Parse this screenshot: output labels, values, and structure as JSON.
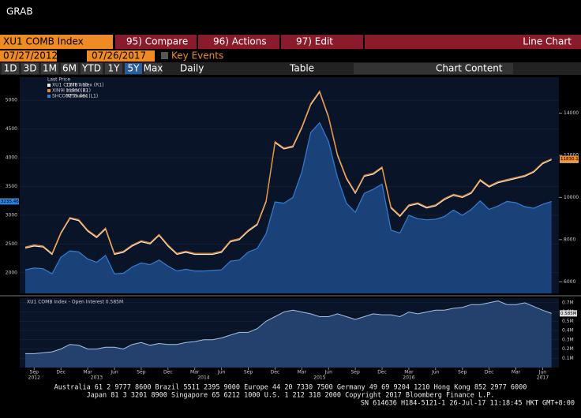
{
  "header": {
    "title": "GRAB"
  },
  "toolbar": {
    "security": "XU1 COMB Index",
    "compare": "95) Compare",
    "actions": "96) Actions",
    "edit": "97) Edit",
    "chart_type": "Line Chart",
    "start_date": "07/27/2012",
    "end_date": "07/26/2017",
    "key_events": "Key Events",
    "periods": [
      "1D",
      "3D",
      "1M",
      "6M",
      "YTD",
      "1Y",
      "5Y",
      "Max"
    ],
    "frequency": "Daily",
    "table": "Table",
    "chart_content": "Chart Content"
  },
  "chart_data": [
    {
      "type": "line",
      "legend_title": "Last Price",
      "x": [
        "2012-08",
        "2012-09",
        "2012-10",
        "2012-11",
        "2012-12",
        "2013-01",
        "2013-02",
        "2013-03",
        "2013-04",
        "2013-05",
        "2013-06",
        "2013-07",
        "2013-08",
        "2013-09",
        "2013-10",
        "2013-11",
        "2013-12",
        "2014-01",
        "2014-02",
        "2014-03",
        "2014-04",
        "2014-05",
        "2014-06",
        "2014-07",
        "2014-08",
        "2014-09",
        "2014-10",
        "2014-11",
        "2014-12",
        "2015-01",
        "2015-02",
        "2015-03",
        "2015-04",
        "2015-05",
        "2015-06",
        "2015-07",
        "2015-08",
        "2015-09",
        "2015-10",
        "2015-11",
        "2015-12",
        "2016-01",
        "2016-02",
        "2016-03",
        "2016-04",
        "2016-05",
        "2016-06",
        "2016-07",
        "2016-08",
        "2016-09",
        "2016-10",
        "2016-11",
        "2016-12",
        "2017-01",
        "2017-02",
        "2017-03",
        "2017-04",
        "2017-05",
        "2017-06",
        "2017-07"
      ],
      "series": [
        {
          "name": "XU1 COMB Index (R1)",
          "last_label": "11787.50",
          "color": "#f0f0f0",
          "axis": "y2",
          "values": [
            7600,
            7700,
            7650,
            7300,
            8300,
            9000,
            8900,
            8400,
            8100,
            8500,
            7300,
            7400,
            7700,
            7900,
            7800,
            8200,
            7700,
            7300,
            7400,
            7300,
            7300,
            7300,
            7400,
            7900,
            8000,
            8400,
            8700,
            9800,
            12600,
            12300,
            12400,
            13300,
            14400,
            15000,
            13800,
            12000,
            10900,
            10200,
            11000,
            11100,
            11400,
            9500,
            9100,
            9600,
            9700,
            9500,
            9600,
            9900,
            10100,
            10000,
            10200,
            10800,
            10500,
            10700,
            10800,
            10900,
            11000,
            11200,
            11600,
            11790
          ]
        },
        {
          "name": "XIN9I Index (R1)",
          "last_label": "11830.17",
          "color": "#f08a24",
          "axis": "y2",
          "values": [
            7650,
            7750,
            7700,
            7350,
            8350,
            9050,
            8950,
            8450,
            8150,
            8550,
            7350,
            7450,
            7750,
            7950,
            7850,
            8250,
            7750,
            7350,
            7450,
            7350,
            7350,
            7350,
            7450,
            7950,
            8050,
            8450,
            8750,
            9850,
            12650,
            12350,
            12450,
            13350,
            14450,
            15050,
            13850,
            12050,
            10950,
            10250,
            11050,
            11150,
            11450,
            9550,
            9150,
            9650,
            9750,
            9550,
            9650,
            9950,
            10150,
            10050,
            10250,
            10850,
            10550,
            10750,
            10850,
            10950,
            11050,
            11250,
            11650,
            11830
          ]
        },
        {
          "name": "SHCOMP Index (L1)",
          "last_label": "3235.461",
          "color": "#2f7fd8",
          "axis": "y",
          "values": [
            2050,
            2080,
            2070,
            1980,
            2270,
            2380,
            2360,
            2240,
            2180,
            2300,
            1980,
            1990,
            2100,
            2170,
            2140,
            2220,
            2115,
            2030,
            2060,
            2030,
            2030,
            2040,
            2050,
            2200,
            2220,
            2360,
            2420,
            2680,
            3230,
            3210,
            3310,
            3750,
            4440,
            4610,
            4280,
            3660,
            3210,
            3050,
            3380,
            3450,
            3540,
            2740,
            2690,
            3000,
            2940,
            2920,
            2930,
            2980,
            3090,
            3000,
            3100,
            3250,
            3100,
            3160,
            3240,
            3220,
            3150,
            3120,
            3190,
            3240
          ]
        }
      ],
      "ylim": [
        1640,
        5400
      ],
      "yticks": [
        2000,
        2500,
        3000,
        3500,
        4000,
        4500,
        5000
      ],
      "y2lim": [
        5450,
        15700
      ],
      "y2ticks": [
        6000,
        8000,
        10000,
        12000,
        14000
      ]
    },
    {
      "type": "area",
      "name": "XU1 COMB Index - Open Interest 0.585M",
      "last_label": "0.585M",
      "color": "#9fc3e8",
      "values": [
        0.15,
        0.15,
        0.16,
        0.17,
        0.2,
        0.25,
        0.24,
        0.2,
        0.2,
        0.22,
        0.22,
        0.2,
        0.25,
        0.27,
        0.24,
        0.26,
        0.25,
        0.25,
        0.27,
        0.28,
        0.3,
        0.3,
        0.32,
        0.35,
        0.38,
        0.38,
        0.42,
        0.5,
        0.55,
        0.6,
        0.62,
        0.6,
        0.58,
        0.55,
        0.55,
        0.58,
        0.55,
        0.52,
        0.55,
        0.58,
        0.57,
        0.57,
        0.55,
        0.6,
        0.58,
        0.6,
        0.62,
        0.62,
        0.64,
        0.65,
        0.68,
        0.68,
        0.7,
        0.72,
        0.68,
        0.68,
        0.7,
        0.66,
        0.62,
        0.585
      ],
      "ylim": [
        0,
        0.75
      ],
      "yticks": [
        {
          "value": 0.1,
          "label": "0.1M"
        },
        {
          "value": 0.2,
          "label": "0.2M"
        },
        {
          "value": 0.3,
          "label": "0.3M"
        },
        {
          "value": 0.4,
          "label": "0.4M"
        },
        {
          "value": 0.5,
          "label": "0.5M"
        },
        {
          "value": 0.6,
          "label": "0.6M"
        },
        {
          "value": 0.7,
          "label": "0.7M"
        }
      ],
      "xticks": [
        {
          "value": "2012-09",
          "label": "Sep"
        },
        {
          "value": "2012-12",
          "label": "Dec"
        },
        {
          "value": "2013-03",
          "label": "Mar"
        },
        {
          "value": "2013-06",
          "label": "Jun"
        },
        {
          "value": "2013-09",
          "label": "Sep"
        },
        {
          "value": "2013-12",
          "label": "Dec"
        },
        {
          "value": "2014-03",
          "label": "Mar"
        },
        {
          "value": "2014-06",
          "label": "Jun"
        },
        {
          "value": "2014-09",
          "label": "Sep"
        },
        {
          "value": "2014-12",
          "label": "Dec"
        },
        {
          "value": "2015-03",
          "label": "Mar"
        },
        {
          "value": "2015-06",
          "label": "Jun"
        },
        {
          "value": "2015-09",
          "label": "Sep"
        },
        {
          "value": "2015-12",
          "label": "Dec"
        },
        {
          "value": "2016-03",
          "label": "Mar"
        },
        {
          "value": "2016-06",
          "label": "Jun"
        },
        {
          "value": "2016-09",
          "label": "Sep"
        },
        {
          "value": "2016-12",
          "label": "Dec"
        },
        {
          "value": "2017-03",
          "label": "Mar"
        },
        {
          "value": "2017-06",
          "label": "Jun"
        }
      ],
      "year_ticks": [
        {
          "value": "2012-09",
          "label": "2012"
        },
        {
          "value": "2013-04",
          "label": "2013"
        },
        {
          "value": "2014-04",
          "label": "2014"
        },
        {
          "value": "2015-05",
          "label": "2015"
        },
        {
          "value": "2016-03",
          "label": "2016"
        },
        {
          "value": "2017-06",
          "label": "2017"
        }
      ]
    }
  ],
  "footer": {
    "lines": [
      "Australia 61 2 9777 8600 Brazil 5511 2395 9000 Europe 44 20 7330 7500 Germany 49 69 9204 1210 Hong Kong 852 2977 6000",
      "Japan 81 3 3201 8900       Singapore 65 6212 1000       U.S. 1 212 318 2000             Copyright 2017 Bloomberg Finance L.P.",
      "SN 614636 H184-5121-1 26-Jul-17 11:18:45 HKT  GMT+8:00"
    ]
  }
}
